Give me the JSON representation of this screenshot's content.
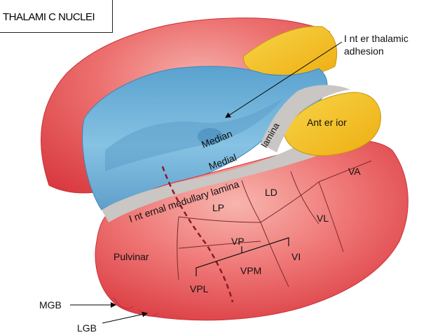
{
  "title": "THALAMI C NUCLEI",
  "labels": {
    "interthalamic_line1": "I nt er thalamic",
    "interthalamic_line2": "adhesion",
    "median": "Median",
    "medial": "Medial",
    "lamina": "lamina",
    "anterior": "Ant er ior",
    "internal_medullary_lamina": "I nt ernal medullary lamina",
    "va": "VA",
    "ld": "LD",
    "lp": "LP",
    "vl": "VL",
    "vp": "VP",
    "vi": "VI",
    "vpm": "VPM",
    "vpl": "VPL",
    "pulvinar": "Pulvinar",
    "mgb": "MGB",
    "lgb": "LGB"
  },
  "colors": {
    "red": "#e04a4e",
    "red_light": "#f2a6a2",
    "blue": "#79b8dc",
    "blue_dark": "#4f97c4",
    "yellow": "#f3c31d",
    "gray": "#c9c6c4"
  }
}
